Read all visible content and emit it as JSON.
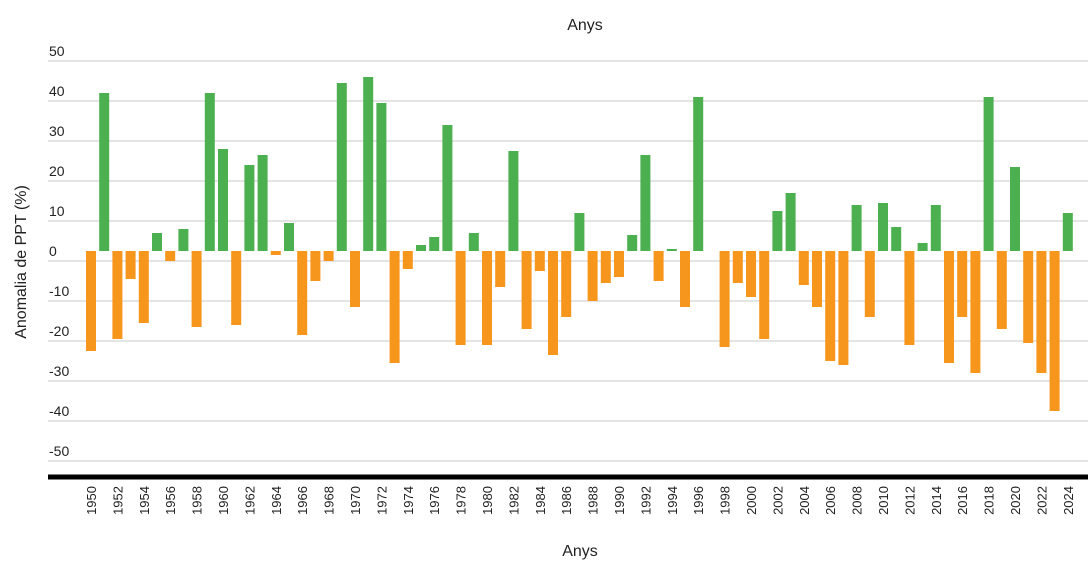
{
  "chart_data": {
    "type": "bar",
    "title": "Anys",
    "xlabel": "Anys",
    "ylabel": "Anomalia de PPT (%)",
    "ylim": [
      -50,
      50
    ],
    "yticks": [
      50,
      40,
      30,
      20,
      10,
      0,
      -10,
      -20,
      -30,
      -40,
      -50
    ],
    "grid": true,
    "colors": {
      "positive": "#4caf50",
      "negative": "#f7961d",
      "grid": "#c8c8c8",
      "axis": "#000000"
    },
    "x_tick_labels": [
      "1950",
      "1952",
      "1954",
      "1956",
      "1958",
      "1960",
      "1962",
      "1964",
      "1966",
      "1968",
      "1970",
      "1972",
      "1974",
      "1976",
      "1978",
      "1980",
      "1982",
      "1984",
      "1986",
      "1988",
      "1990",
      "1992",
      "1994",
      "1996",
      "1998",
      "2000",
      "2002",
      "2004",
      "2006",
      "2008",
      "2010",
      "2012",
      "2014",
      "2016",
      "2018",
      "2020",
      "2022",
      "2024"
    ],
    "categories": [
      1950,
      1951,
      1952,
      1953,
      1954,
      1955,
      1956,
      1957,
      1958,
      1959,
      1960,
      1961,
      1962,
      1963,
      1964,
      1965,
      1966,
      1967,
      1968,
      1969,
      1970,
      1971,
      1972,
      1973,
      1974,
      1975,
      1976,
      1977,
      1978,
      1979,
      1980,
      1981,
      1982,
      1983,
      1984,
      1985,
      1986,
      1987,
      1988,
      1989,
      1990,
      1991,
      1992,
      1993,
      1994,
      1995,
      1996,
      1997,
      1998,
      1999,
      2000,
      2001,
      2002,
      2003,
      2004,
      2005,
      2006,
      2007,
      2008,
      2009,
      2010,
      2011,
      2012,
      2013,
      2014,
      2015,
      2016,
      2017,
      2018,
      2019,
      2020,
      2021,
      2022,
      2023,
      2024
    ],
    "values": [
      -25,
      39.5,
      -22,
      -7,
      -18,
      4.5,
      -2.5,
      5.5,
      -19,
      39.5,
      25.5,
      -18.5,
      21.5,
      24,
      -1,
      7,
      -21,
      -7.5,
      -2.5,
      42,
      -14,
      43.5,
      37,
      -28,
      -4.5,
      1.5,
      3.5,
      31.5,
      -23.5,
      4.5,
      -23.5,
      -9,
      25,
      -19.5,
      -5,
      -26,
      -16.5,
      9.5,
      -12.5,
      -8,
      -6.5,
      4,
      24,
      -7.5,
      0.5,
      -14,
      38.5,
      0,
      -24,
      -8,
      -11.5,
      -22,
      10,
      14.5,
      -8.5,
      -14,
      -27.5,
      -28.5,
      11.5,
      -16.5,
      12,
      6,
      -23.5,
      2,
      11.5,
      -28,
      -16.5,
      -30.5,
      38.5,
      -19.5,
      21,
      -23,
      -30.5,
      -40,
      9.5
    ]
  }
}
